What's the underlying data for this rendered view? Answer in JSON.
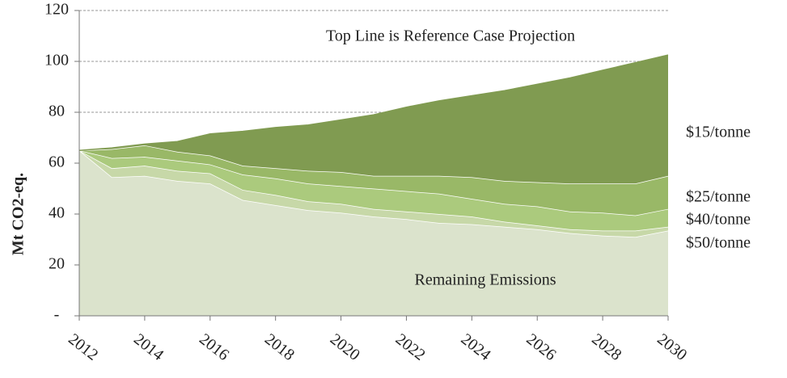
{
  "chart_data": {
    "type": "stacked_area",
    "annotation": "Top Line is Reference Case Projection",
    "y_label": "Mt CO2-eq.",
    "x": [
      2012,
      2013,
      2014,
      2015,
      2016,
      2017,
      2018,
      2019,
      2020,
      2021,
      2022,
      2023,
      2024,
      2025,
      2026,
      2027,
      2028,
      2029,
      2030
    ],
    "xlim": [
      2012,
      2030
    ],
    "xticks": [
      2012,
      2014,
      2016,
      2018,
      2020,
      2022,
      2024,
      2026,
      2028,
      2030
    ],
    "ylim": [
      0,
      120
    ],
    "yticks": [
      {
        "value": 0,
        "label": "-"
      },
      20,
      40,
      60,
      80,
      100,
      120
    ],
    "grid": true,
    "series": [
      {
        "name": "Remaining Emissions",
        "color": "#dbe3cc",
        "values": [
          65,
          54.5,
          55,
          53,
          52,
          45.5,
          43.5,
          41.5,
          40.5,
          39,
          38,
          36.5,
          36,
          35,
          34,
          32.5,
          31.5,
          31,
          33.5
        ]
      },
      {
        "name": "$50/tonne",
        "color": "#c7d8a8",
        "values": [
          0,
          3.5,
          4,
          4,
          4,
          4,
          4,
          3.5,
          3.5,
          3,
          3,
          3.5,
          3,
          2,
          1.5,
          1.5,
          2,
          2.5,
          1.5
        ]
      },
      {
        "name": "$40/tonne",
        "color": "#abca7d",
        "values": [
          0,
          4,
          3.5,
          4,
          3.5,
          6,
          6.5,
          7,
          7,
          8,
          8,
          8,
          7,
          7,
          7.5,
          7,
          7,
          6,
          7
        ]
      },
      {
        "name": "$25/tonne",
        "color": "#99b867",
        "values": [
          0,
          3.5,
          4.5,
          3.5,
          3.5,
          3.5,
          4,
          5,
          5.5,
          5,
          6,
          7,
          8.5,
          9,
          9.5,
          11,
          11.5,
          12.5,
          13
        ]
      },
      {
        "name": "$15/tonne",
        "color": "#809b51",
        "values": [
          0,
          0.5,
          0.5,
          4,
          8.5,
          13.5,
          16,
          18,
          20.5,
          24,
          27,
          29.5,
          32,
          35.5,
          38.5,
          41.5,
          44.5,
          47.5,
          47.5
        ]
      }
    ]
  }
}
